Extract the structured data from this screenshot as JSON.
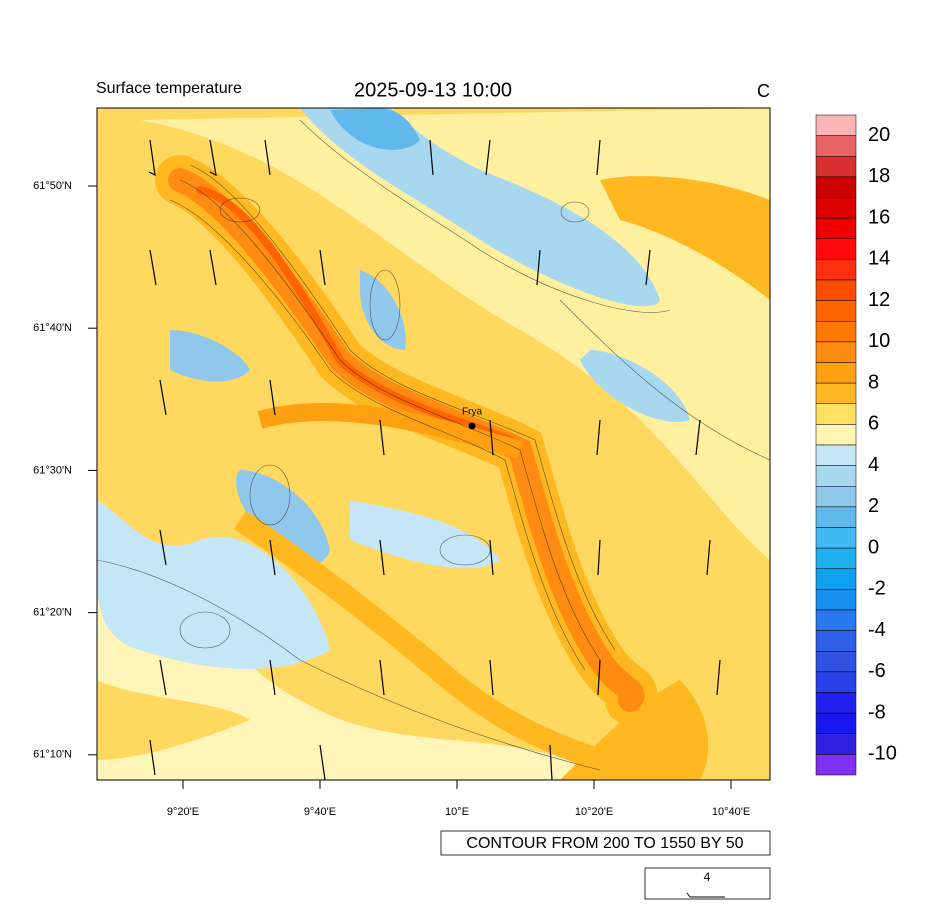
{
  "title_left": "Surface temperature",
  "title_center": "2025-09-13 10:00",
  "title_right": "C",
  "lat_ticks": [
    "61°50'N",
    "61°40'N",
    "61°30'N",
    "61°20'N",
    "61°10'N"
  ],
  "lon_ticks": [
    "9°20'E",
    "9°40'E",
    "10°E",
    "10°20'E",
    "10°40'E"
  ],
  "station": "Frya",
  "contour_info": "CONTOUR FROM 200 TO 1550 BY 50",
  "wind_reference": "4",
  "colorbar": {
    "labels": [
      20,
      18,
      16,
      14,
      12,
      10,
      8,
      6,
      4,
      2,
      0,
      -2,
      -4,
      -6,
      -8,
      -10
    ],
    "colors": [
      "#f9b4b4",
      "#e86464",
      "#d83030",
      "#cc0000",
      "#dd0000",
      "#ee0000",
      "#ff0a0a",
      "#ff3010",
      "#ff4c00",
      "#ff6400",
      "#ff7a00",
      "#ff8c10",
      "#ffa010",
      "#ffb820",
      "#ffe060",
      "#fff5b0",
      "#c4e6f6",
      "#a8d8f0",
      "#90c8ec",
      "#60b8ec",
      "#40b8f0",
      "#20b0f0",
      "#10a0f0",
      "#1890f0",
      "#2878f0",
      "#3060e8",
      "#3050e0",
      "#2840e8",
      "#2020f0",
      "#1818f0",
      "#3020e0",
      "#8030f0"
    ]
  }
}
